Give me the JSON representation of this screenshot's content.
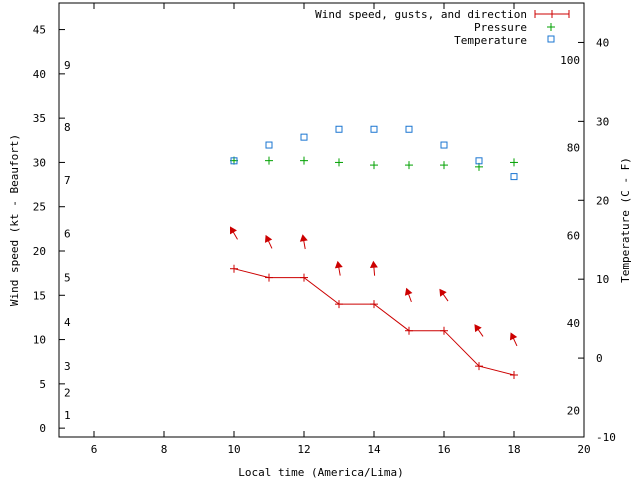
{
  "chart_data": {
    "type": "line",
    "x_label": "Local time (America/Lima)",
    "y_label": "Wind speed (kt - Beaufort)",
    "y2_label": "Temperature (C - F)",
    "x_range": [
      5,
      20
    ],
    "x_ticks": [
      6,
      8,
      10,
      12,
      14,
      16,
      18,
      20
    ],
    "y_range": [
      -1,
      48
    ],
    "y_ticks": [
      0,
      5,
      10,
      15,
      20,
      25,
      30,
      35,
      40,
      45
    ],
    "beaufort": {
      "labels": [
        "1",
        "2",
        "3",
        "4",
        "5",
        "6",
        "7",
        "8",
        "9"
      ],
      "knots": [
        1.5,
        4,
        7,
        12,
        17,
        22,
        28,
        34,
        41
      ]
    },
    "temp_c": {
      "range": [
        -10,
        45
      ],
      "ticks": [
        -10,
        0,
        10,
        20,
        30,
        40
      ]
    },
    "temp_f": {
      "ticks": [
        20,
        40,
        60,
        80,
        100
      ]
    },
    "legend": {
      "wind": "Wind speed, gusts, and direction",
      "pressure": "Pressure",
      "temperature": "Temperature"
    },
    "colors": {
      "wind": "#cc0000",
      "pressure": "#00a000",
      "temperature": "#1a75d1"
    },
    "series": {
      "wind_speed": {
        "x": [
          10,
          11,
          12,
          13,
          14,
          15,
          16,
          17,
          18
        ],
        "y": [
          18,
          17,
          17,
          14,
          14,
          11,
          11,
          7,
          6
        ]
      },
      "wind_direction": {
        "x": [
          10,
          11,
          12,
          13,
          14,
          15,
          16,
          17,
          18
        ],
        "y": [
          22,
          21,
          21,
          18,
          18,
          15,
          15,
          11,
          10
        ],
        "angle_deg": [
          -120,
          -115,
          -100,
          -100,
          -95,
          -110,
          -125,
          -125,
          -115
        ]
      },
      "pressure_y_on_wind_scale": {
        "x": [
          10,
          11,
          12,
          13,
          14,
          15,
          16,
          17,
          18
        ],
        "y": [
          30.2,
          30.2,
          30.2,
          30.0,
          29.7,
          29.7,
          29.7,
          29.5,
          30.0
        ]
      },
      "temperature_c": {
        "x": [
          10,
          11,
          12,
          13,
          14,
          15,
          16,
          17,
          18
        ],
        "y": [
          25,
          27,
          28,
          29,
          29,
          29,
          27,
          25,
          23
        ]
      }
    }
  }
}
